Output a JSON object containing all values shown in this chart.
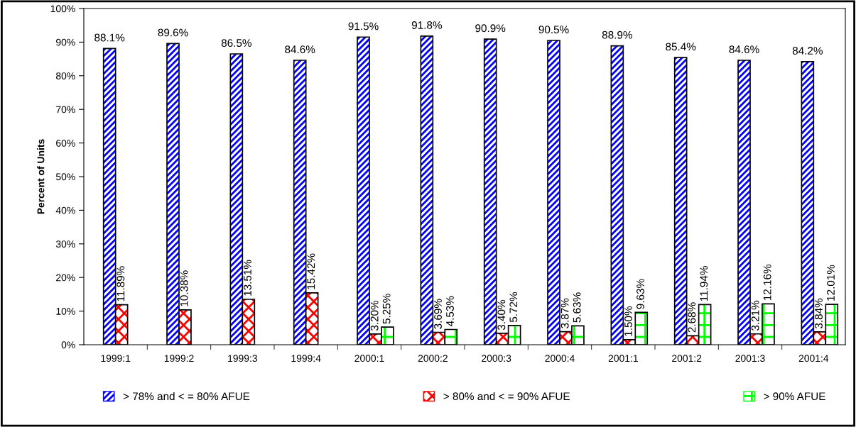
{
  "chart_data": {
    "type": "bar",
    "ylabel": "Percent of Units",
    "categories": [
      "1999:1",
      "1999:2",
      "1999:3",
      "1999:4",
      "2000:1",
      "2000:2",
      "2000:3",
      "2000:4",
      "2001:1",
      "2001:2",
      "2001:3",
      "2001:4"
    ],
    "series": [
      {
        "name": "> 78% and < = 80% AFUE",
        "color": "#0000ff",
        "values": [
          88.1,
          89.6,
          86.5,
          84.6,
          91.5,
          91.8,
          90.9,
          90.5,
          88.9,
          85.4,
          84.6,
          84.2
        ],
        "value_labels": [
          "88.1%",
          "89.6%",
          "86.5%",
          "84.6%",
          "91.5%",
          "91.8%",
          "90.9%",
          "90.5%",
          "88.9%",
          "85.4%",
          "84.6%",
          "84.2%"
        ]
      },
      {
        "name": "> 80% and < = 90% AFUE",
        "color": "#ff0000",
        "values": [
          11.89,
          10.38,
          13.51,
          15.42,
          3.2,
          3.69,
          3.4,
          3.87,
          1.5,
          2.68,
          3.21,
          3.84
        ],
        "value_labels": [
          "11.89%",
          "10.38%",
          "13.51%",
          "15.42%",
          "3.20%",
          "3.69%",
          "3.40%",
          "3.87%",
          "1.50%",
          "2.68%",
          "3.21%",
          "3.84%"
        ]
      },
      {
        "name": "> 90% AFUE",
        "color": "#00ff00",
        "values": [
          null,
          null,
          null,
          null,
          5.25,
          4.53,
          5.72,
          5.63,
          9.63,
          11.94,
          12.16,
          12.01
        ],
        "value_labels": [
          null,
          null,
          null,
          null,
          "5.25%",
          "4.53%",
          "5.72%",
          "5.63%",
          "9.63%",
          "11.94%",
          "12.16%",
          "12.01%"
        ]
      }
    ],
    "ylim": [
      0,
      100
    ],
    "yticks": [
      {
        "value": 0,
        "label": "0%"
      },
      {
        "value": 10,
        "label": "10%"
      },
      {
        "value": 20,
        "label": "20%"
      },
      {
        "value": 30,
        "label": "30%"
      },
      {
        "value": 40,
        "label": "40%"
      },
      {
        "value": 50,
        "label": "50%"
      },
      {
        "value": 60,
        "label": "60%"
      },
      {
        "value": 70,
        "label": "70%"
      },
      {
        "value": 80,
        "label": "80%"
      },
      {
        "value": 90,
        "label": "90%"
      },
      {
        "value": 100,
        "label": "100%"
      }
    ],
    "grid": false,
    "legend": "bottom"
  }
}
